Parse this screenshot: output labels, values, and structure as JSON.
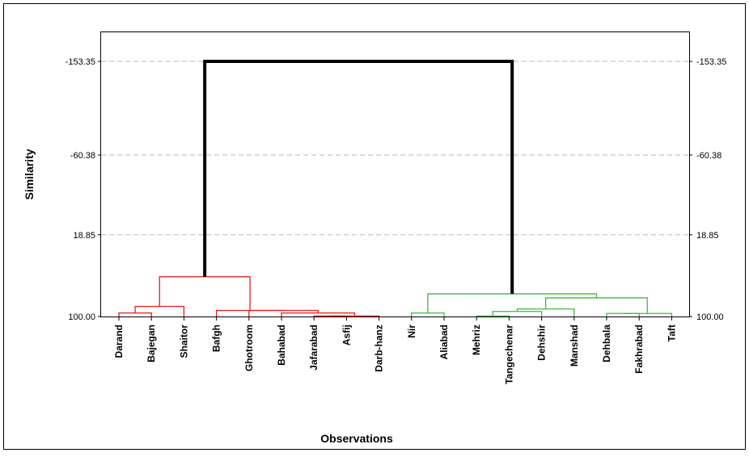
{
  "chart_data": {
    "type": "dendrogram",
    "ylabel": "Similarity",
    "xlabel": "Observations",
    "yticks": [
      "-153.35",
      "-60.38",
      "18.85",
      "100.00"
    ],
    "ytick_values": [
      -153.35,
      -60.38,
      18.85,
      100.0
    ],
    "ylim": [
      -153.35,
      100.0
    ],
    "grid": true,
    "observations": [
      "Darand",
      "Bajegan",
      "Shaitor",
      "Bafgh",
      "Ghotroom",
      "Bahabad",
      "Jafarabad",
      "Asfij",
      "Darb-hanz",
      "Nir",
      "Aliabad",
      "Mehriz",
      "Tangechenar",
      "Dehshir",
      "Manshad",
      "Dehbala",
      "Fakhrabad",
      "Taft"
    ],
    "clusters": [
      {
        "color": "#e8191c",
        "members": [
          0,
          1,
          2,
          3,
          4,
          5,
          6,
          7,
          8
        ]
      },
      {
        "color": "#3fb93f",
        "members": [
          9,
          10,
          11,
          12,
          13,
          14,
          15,
          16,
          17
        ]
      }
    ],
    "merges": [
      {
        "left": 6,
        "right": 7,
        "similarity": 99.5,
        "color": "#e8191c"
      },
      {
        "left": 8,
        "right": 18,
        "similarity": 99.5,
        "color": "#e8191c"
      },
      {
        "left": 5,
        "right": 19,
        "similarity": 96.5,
        "color": "#e8191c"
      },
      {
        "left": 4,
        "right": 20,
        "similarity": 94.0,
        "color": "#e8191c"
      },
      {
        "left": 3,
        "right": 21,
        "similarity": 94.0,
        "color": "#e8191c"
      },
      {
        "left": 0,
        "right": 1,
        "similarity": 96.5,
        "color": "#e8191c"
      },
      {
        "left": 23,
        "right": 2,
        "similarity": 90.0,
        "color": "#e8191c"
      },
      {
        "left": 24,
        "right": 22,
        "similarity": 60.5,
        "color": "#e8191c"
      },
      {
        "left": 9,
        "right": 10,
        "similarity": 96.5,
        "color": "#3fb93f"
      },
      {
        "left": 11,
        "right": 12,
        "similarity": 99.5,
        "color": "#3fb93f"
      },
      {
        "left": 15,
        "right": 16,
        "similarity": 97.0,
        "color": "#3fb93f"
      },
      {
        "left": 28,
        "right": 17,
        "similarity": 97.0,
        "color": "#3fb93f"
      },
      {
        "left": 27,
        "right": 13,
        "similarity": 95.0,
        "color": "#3fb93f"
      },
      {
        "left": 30,
        "right": 14,
        "similarity": 92.5,
        "color": "#3fb93f"
      },
      {
        "left": 31,
        "right": 29,
        "similarity": 81.5,
        "color": "#3fb93f"
      },
      {
        "left": 26,
        "right": 32,
        "similarity": 77.5,
        "color": "#3fb93f"
      },
      {
        "left": 25,
        "right": 33,
        "similarity": -153.35,
        "color": "#000000"
      }
    ]
  }
}
